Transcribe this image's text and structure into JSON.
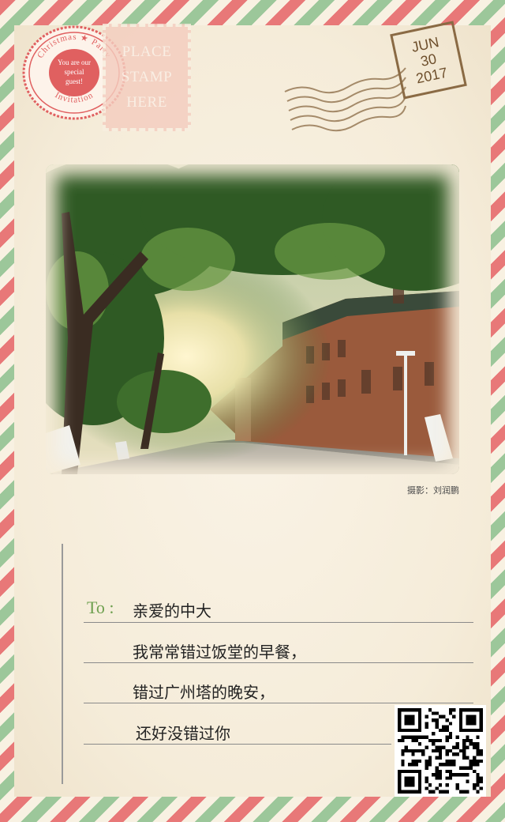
{
  "seal": {
    "ring_top": "Christmas ★ Party",
    "ring_bottom": "Invitation",
    "center_lines": [
      "You are our",
      "special",
      "guest!"
    ]
  },
  "stamp_box": {
    "lines": [
      "PLACE",
      "STAMP",
      "HERE"
    ]
  },
  "date_stamp": {
    "month": "JUN",
    "day": "30",
    "year": "2017"
  },
  "photo": {
    "credit": "摄影：刘润鹏"
  },
  "letter": {
    "to_label": "To :",
    "greeting": "亲爱的中大",
    "lines": [
      "我常常错过饭堂的早餐，",
      "错过广州塔的晚安，",
      "还好没错过你"
    ]
  },
  "colors": {
    "stripe_red": "#e87878",
    "stripe_green": "#9cc79a",
    "paper": "#f8f1e2",
    "to_green": "#6ea04f",
    "seal_red": "#e06060"
  }
}
